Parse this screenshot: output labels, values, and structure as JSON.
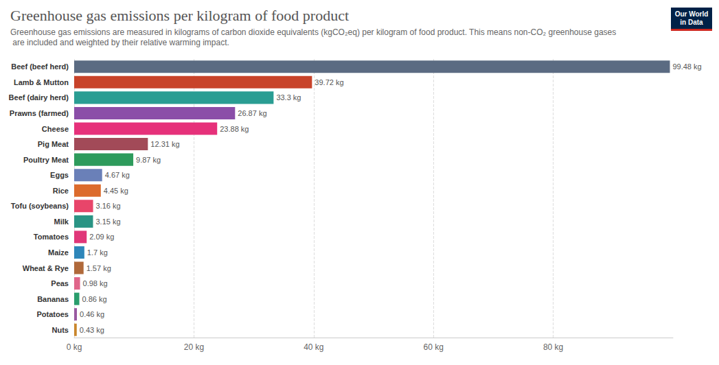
{
  "chart_data": {
    "type": "bar",
    "orientation": "horizontal",
    "title": "Greenhouse gas emissions per kilogram of food product",
    "subtitle": "Greenhouse gas emissions are measured in kilograms of carbon dioxide equivalents (kgCO₂eq) per kilogram of food product. This means non-CO₂ greenhouse gases are included and weighted by their relative warming impact.",
    "logo": [
      "Our World",
      "in Data"
    ],
    "categories": [
      "Beef (beef herd)",
      "Lamb & Mutton",
      "Beef (dairy herd)",
      "Prawns (farmed)",
      "Cheese",
      "Pig Meat",
      "Poultry Meat",
      "Eggs",
      "Rice",
      "Tofu (soybeans)",
      "Milk",
      "Tomatoes",
      "Maize",
      "Wheat & Rye",
      "Peas",
      "Bananas",
      "Potatoes",
      "Nuts"
    ],
    "values": [
      99.48,
      39.72,
      33.3,
      26.87,
      23.88,
      12.31,
      9.87,
      4.67,
      4.45,
      3.16,
      3.15,
      2.09,
      1.7,
      1.57,
      0.98,
      0.86,
      0.46,
      0.43
    ],
    "value_labels": [
      "99.48 kg",
      "39.72 kg",
      "33.3 kg",
      "26.87 kg",
      "23.88 kg",
      "12.31 kg",
      "9.87 kg",
      "4.67 kg",
      "4.45 kg",
      "3.16 kg",
      "3.15 kg",
      "2.09 kg",
      "1.7 kg",
      "1.57 kg",
      "0.98 kg",
      "0.86 kg",
      "0.46 kg",
      "0.43 kg"
    ],
    "colors": [
      "#5b6b82",
      "#c8432a",
      "#2a9d93",
      "#8b4ea8",
      "#e6317a",
      "#a24a58",
      "#2e9b5c",
      "#6a80b8",
      "#dc6b2c",
      "#e8456a",
      "#2a9484",
      "#e03779",
      "#2e86b9",
      "#b0693a",
      "#e0668a",
      "#2a9d6c",
      "#9a5aa0",
      "#c9862c"
    ],
    "xlim": [
      0,
      100
    ],
    "xticks": [
      {
        "value": 0,
        "label": "0 kg"
      },
      {
        "value": 20,
        "label": "20 kg"
      },
      {
        "value": 40,
        "label": "40 kg"
      },
      {
        "value": 60,
        "label": "60 kg"
      },
      {
        "value": 80,
        "label": "80 kg"
      }
    ],
    "grid": true,
    "data_labels": true
  }
}
